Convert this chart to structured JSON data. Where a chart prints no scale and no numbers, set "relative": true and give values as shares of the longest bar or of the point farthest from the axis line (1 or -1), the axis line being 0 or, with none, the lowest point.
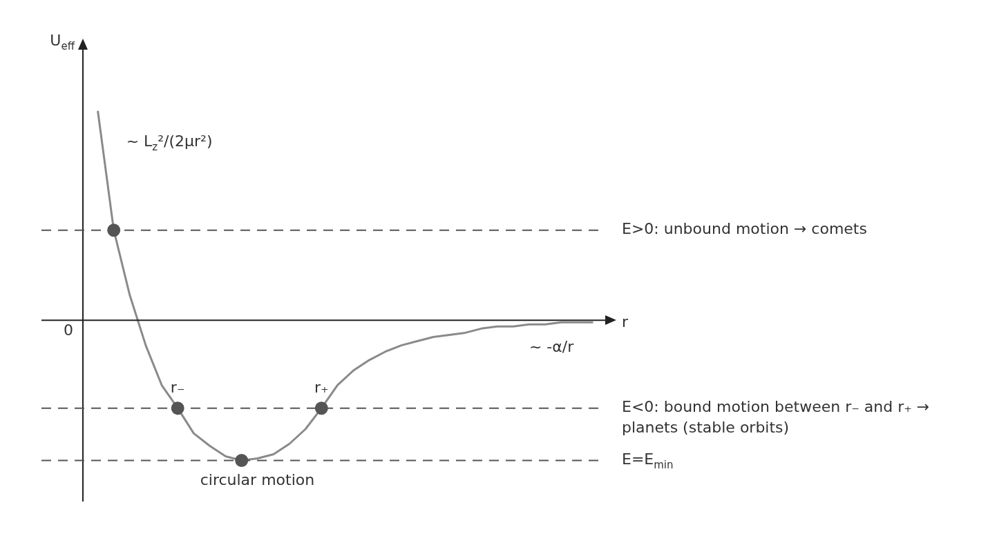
{
  "chart_data": {
    "type": "line",
    "relative": true,
    "ylabel": "U$_{eff}$",
    "xlabel": "r",
    "categories": [
      null,
      null,
      null,
      null,
      null,
      null,
      null,
      null,
      null,
      null,
      null,
      null,
      null,
      null,
      null,
      null,
      null,
      null,
      null,
      null,
      null,
      null,
      null,
      null,
      null,
      null,
      null,
      null,
      null,
      null,
      null,
      null
    ],
    "series": [
      {
        "type": "line",
        "color": "#8a8a8a",
        "marker": "none",
        "values": [
          1,
          0.43,
          0.12,
          -0.12,
          -0.31,
          -0.42,
          -0.54,
          -0.6,
          -0.65,
          -0.67,
          -0.66,
          -0.64,
          -0.59,
          -0.52,
          -0.42,
          -0.31,
          -0.24,
          -0.19,
          -0.15,
          -0.12,
          -0.1,
          -0.08,
          -0.07,
          -0.06,
          -0.04,
          -0.03,
          -0.03,
          -0.02,
          -0.02,
          -0.01,
          -0.01,
          -0.01
        ]
      }
    ],
    "ref_lines": [
      {
        "axis": "y",
        "value": 0.43,
        "label": "E>0: unbound motion → comets",
        "line_style": "dashed",
        "color": "#555555"
      },
      {
        "axis": "y",
        "value": -0.42,
        "label": "E<0: bound motion between r₋ and r₊ → planets (stable orbits)",
        "line_style": "dashed",
        "color": "#555555"
      },
      {
        "axis": "y",
        "value": -0.67,
        "label": "E=E$_{min}$",
        "line_style": "dashed",
        "color": "#555555"
      }
    ],
    "annotations": [
      "0",
      "~ L$_{z}$²/(2μr²)",
      "~ -α/r",
      "r₋",
      "r₊",
      "circular motion"
    ],
    "legend": false
  }
}
